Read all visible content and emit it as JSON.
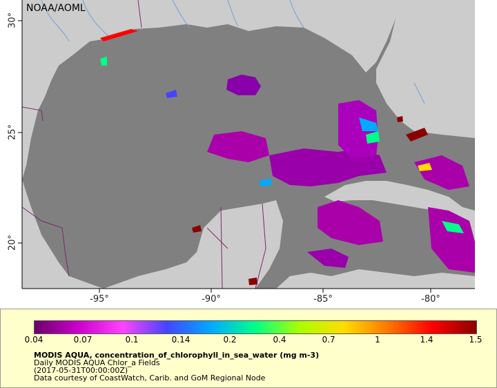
{
  "credit": "NOAA/AOML",
  "x_ticks": [
    "-95°",
    "-90°",
    "-85°",
    "-80°"
  ],
  "y_ticks": [
    "30°",
    "25°",
    "20°"
  ],
  "legend": {
    "ticks": [
      "0.04",
      "0.07",
      "0.1",
      "0.14",
      "0.2",
      "0.4",
      "0.7",
      "1",
      "1.4",
      "1.5"
    ],
    "title": "MODIS AQUA, concentration_of_chlorophyll_in_sea_water (mg m-3)",
    "line1": "Daily MODIS AQUA Chlor_a Fields",
    "line2": "(2017-05-31T00:00:00Z)",
    "line3": "Data courtesy of CoastWatch, Carib. and GoM Regional Node"
  },
  "colors": {
    "ocean": "#808080",
    "land": "#cccccc",
    "rivers": "#6fa0d8",
    "borders": "#7a2a6a",
    "legend_bg": "#ffffcc",
    "colorbar_stops": [
      "#6a006a",
      "#cc00cc",
      "#ff44ff",
      "#4444ff",
      "#00aaff",
      "#00ff88",
      "#aaff00",
      "#ffdd00",
      "#ff7700",
      "#ff0000",
      "#8b0000"
    ]
  }
}
